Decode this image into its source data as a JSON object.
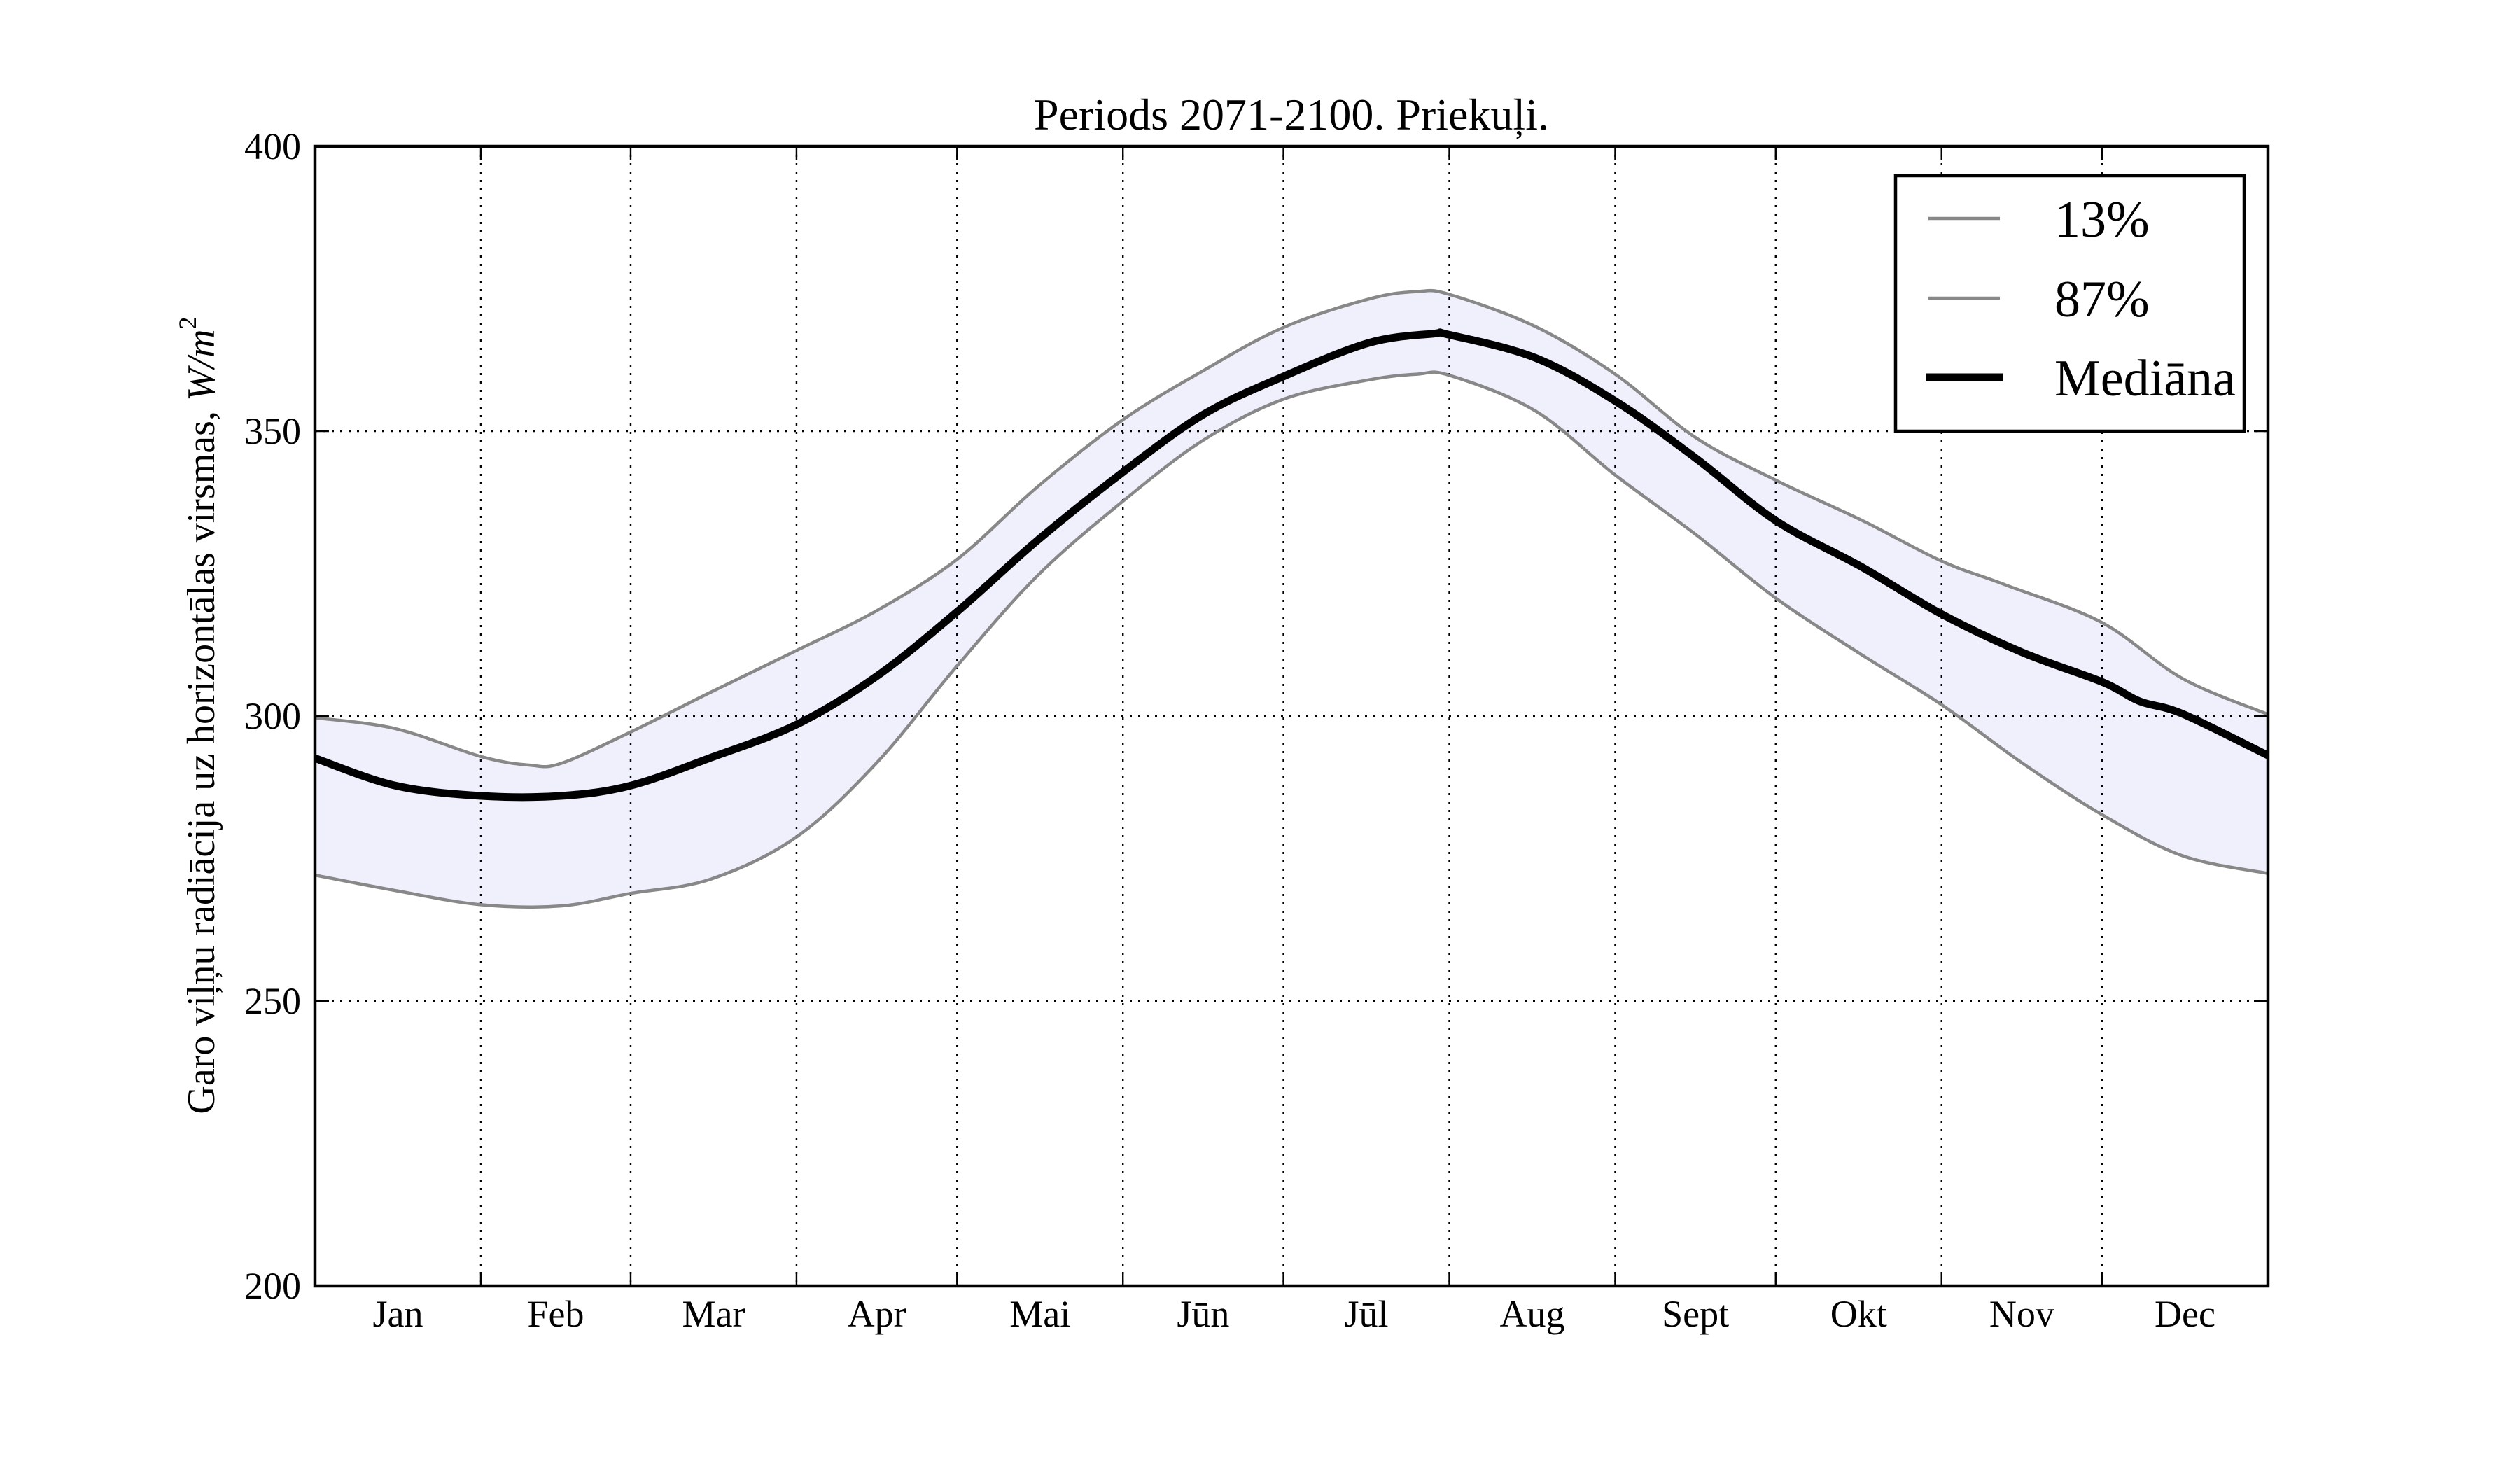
{
  "chart_data": {
    "type": "line",
    "title": "Periods 2071-2100. Priekuļi.",
    "xlabel": "",
    "ylabel": "Garo viļņu radiācija uz horizontālas virsmas, ",
    "ylabel_unit": "W/m",
    "ylabel_unit_exponent": "2",
    "x_unit": "day of year",
    "xlim": [
      0,
      365
    ],
    "ylim": [
      200,
      400
    ],
    "grid": true,
    "yticks": [
      200,
      250,
      300,
      350,
      400
    ],
    "ytick_labels": [
      "200",
      "250",
      "300",
      "350",
      "400"
    ],
    "month_boundaries": [
      31,
      59,
      90,
      120,
      151,
      181,
      212,
      243,
      273,
      304,
      334
    ],
    "xtick_labels": [
      "Jan",
      "Feb",
      "Mar",
      "Apr",
      "Mai",
      "Jūn",
      "Jūl",
      "Aug",
      "Sept",
      "Okt",
      "Nov",
      "Dec"
    ],
    "xtick_positions": [
      15.5,
      45,
      74.5,
      105,
      135.5,
      166,
      196.5,
      227.5,
      258,
      288.5,
      319,
      349.5
    ],
    "legend_position": "top-right",
    "band_color": "#f0f0fc",
    "series": [
      {
        "name": "13%",
        "color": "#888888",
        "x": [
          0,
          15,
          31,
          46,
          59,
          74,
          90,
          105,
          120,
          135,
          151,
          166,
          181,
          197,
          206,
          212,
          228,
          243,
          258,
          273,
          289,
          304,
          319,
          334,
          349,
          365
        ],
        "y": [
          272.1,
          269.4,
          266.9,
          266.7,
          268.9,
          271.4,
          278.8,
          291.8,
          308.8,
          324.6,
          337.7,
          348.4,
          355.6,
          359.0,
          360.0,
          359.8,
          353.6,
          342.3,
          331.9,
          320.7,
          310.8,
          302.0,
          291.8,
          282.7,
          275.5,
          272.4
        ]
      },
      {
        "name": "87%",
        "color": "#888888",
        "x": [
          0,
          15,
          31,
          40,
          46,
          59,
          74,
          90,
          105,
          120,
          135,
          151,
          166,
          181,
          197,
          206,
          212,
          228,
          243,
          258,
          273,
          289,
          304,
          316,
          334,
          349,
          365
        ],
        "y": [
          299.7,
          297.8,
          292.9,
          291.4,
          291.7,
          297.2,
          304.2,
          311.5,
          318.5,
          327.5,
          340.2,
          352.0,
          360.6,
          368.2,
          373.2,
          374.5,
          374.0,
          368.4,
          360.0,
          348.9,
          341.4,
          334.4,
          327.2,
          323.0,
          316.4,
          306.6,
          300.3
        ]
      },
      {
        "name": "Mediāna",
        "color": "#000000",
        "x": [
          0,
          15,
          31,
          46,
          59,
          74,
          90,
          105,
          120,
          135,
          151,
          166,
          181,
          197,
          209,
          212,
          228,
          243,
          258,
          273,
          289,
          304,
          319,
          334,
          341,
          349,
          365
        ],
        "y": [
          292.6,
          287.8,
          286.0,
          286.0,
          287.8,
          292.7,
          298.5,
          307.0,
          318.3,
          330.8,
          342.8,
          352.9,
          359.6,
          365.5,
          367.1,
          366.9,
          362.9,
          355.3,
          345.3,
          334.3,
          326.2,
          317.9,
          311.2,
          306.0,
          302.6,
          300.4,
          293.1
        ]
      }
    ]
  }
}
